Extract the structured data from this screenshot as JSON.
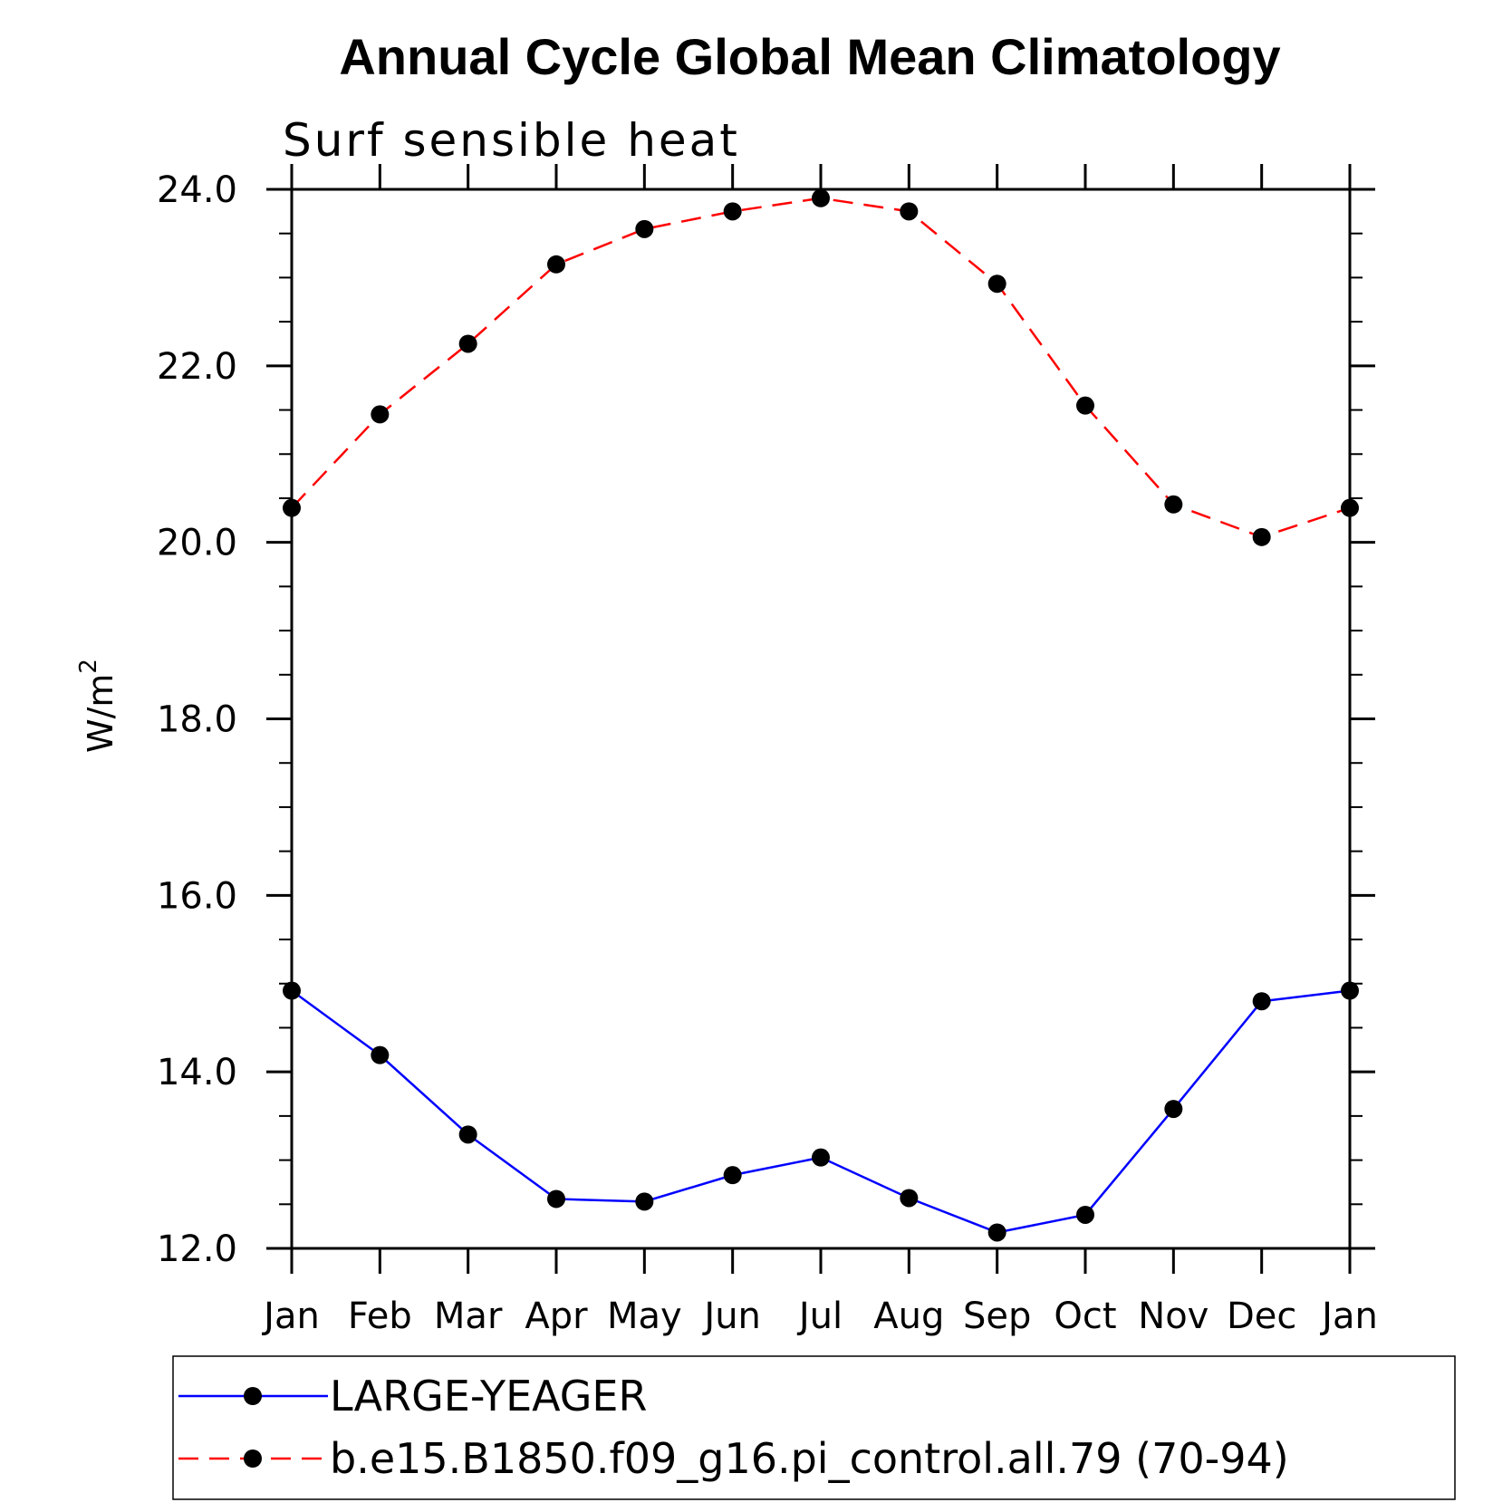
{
  "chart_data": {
    "type": "line",
    "title": "Annual Cycle Global Mean Climatology",
    "subtitle": "Surf sensible heat",
    "ylabel": "W/m",
    "ylabel_superscript": "2",
    "xlabel": "",
    "categories": [
      "Jan",
      "Feb",
      "Mar",
      "Apr",
      "May",
      "Jun",
      "Jul",
      "Aug",
      "Sep",
      "Oct",
      "Nov",
      "Dec",
      "Jan"
    ],
    "ylim": [
      12.0,
      24.0
    ],
    "yticks": [
      "12.0",
      "14.0",
      "16.0",
      "18.0",
      "20.0",
      "22.0",
      "24.0"
    ],
    "grid": false,
    "legend_position": "bottom",
    "series": [
      {
        "name": "LARGE-YEAGER",
        "color": "#0000ff",
        "dash": "solid",
        "marker": "circle",
        "values": [
          14.92,
          14.19,
          13.29,
          12.56,
          12.53,
          12.83,
          13.03,
          12.57,
          12.18,
          12.38,
          13.58,
          14.8,
          14.92
        ]
      },
      {
        "name": "b.e15.B1850.f09_g16.pi_control.all.79 (70-94)",
        "color": "#ff0000",
        "dash": "dashed",
        "marker": "circle",
        "values": [
          20.39,
          21.45,
          22.25,
          23.15,
          23.55,
          23.75,
          23.9,
          23.75,
          22.93,
          21.55,
          20.43,
          20.06,
          20.39
        ]
      }
    ]
  }
}
